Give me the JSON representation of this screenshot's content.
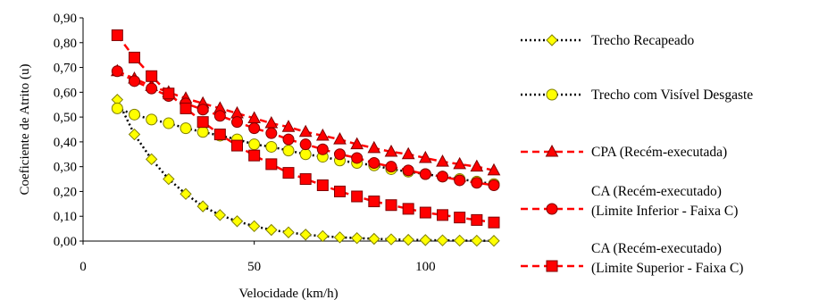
{
  "chart_data": {
    "type": "line",
    "title": "",
    "xlabel": "Velocidade (km/h)",
    "ylabel": "Coeficiente de Atrito (u)",
    "xlim": [
      0,
      120
    ],
    "ylim": [
      0,
      0.9
    ],
    "x_ticks": [
      "0",
      "50",
      "100"
    ],
    "y_ticks": [
      "0,00",
      "0,10",
      "0,20",
      "0,30",
      "0,40",
      "0,50",
      "0,60",
      "0,70",
      "0,80",
      "0,90"
    ],
    "grid": false,
    "legend_position": "right",
    "x": [
      10,
      15,
      20,
      25,
      30,
      35,
      40,
      45,
      50,
      55,
      60,
      65,
      70,
      75,
      80,
      85,
      90,
      95,
      100,
      105,
      110,
      115,
      120
    ],
    "series": [
      {
        "name": "Trecho Recapeado",
        "line_color": "#000000",
        "dash": "dot",
        "marker": "diamond",
        "marker_fill": "#ffff00",
        "marker_stroke": "#7f7f00",
        "values": [
          0.57,
          0.43,
          0.33,
          0.25,
          0.19,
          0.14,
          0.105,
          0.08,
          0.06,
          0.045,
          0.035,
          0.026,
          0.02,
          0.015,
          0.012,
          0.009,
          0.007,
          0.005,
          0.004,
          0.003,
          0.002,
          0.0015,
          0.001
        ]
      },
      {
        "name": "Trecho com Visível Desgaste",
        "line_color": "#000000",
        "dash": "dot",
        "marker": "circle",
        "marker_fill": "#ffff00",
        "marker_stroke": "#7f7f00",
        "values": [
          0.535,
          0.51,
          0.49,
          0.475,
          0.455,
          0.44,
          0.425,
          0.41,
          0.39,
          0.38,
          0.365,
          0.35,
          0.34,
          0.325,
          0.315,
          0.305,
          0.29,
          0.28,
          0.27,
          0.26,
          0.25,
          0.24,
          0.23
        ]
      },
      {
        "name": "CPA (Recém-executada)",
        "line_color": "#ff0000",
        "dash": "dash",
        "marker": "triangle",
        "marker_fill": "#ff0000",
        "marker_stroke": "#7f0000",
        "values": [
          0.685,
          0.655,
          0.625,
          0.6,
          0.575,
          0.555,
          0.535,
          0.515,
          0.495,
          0.475,
          0.46,
          0.44,
          0.425,
          0.41,
          0.39,
          0.375,
          0.36,
          0.35,
          0.335,
          0.32,
          0.31,
          0.3,
          0.285
        ]
      },
      {
        "name": "CA (Recém-executado) (Limite Inferior - Faixa C)",
        "line_color": "#ff0000",
        "dash": "dash",
        "marker": "circle",
        "marker_fill": "#ff0000",
        "marker_stroke": "#7f0000",
        "values": [
          0.685,
          0.645,
          0.615,
          0.585,
          0.555,
          0.53,
          0.505,
          0.48,
          0.455,
          0.435,
          0.41,
          0.39,
          0.37,
          0.35,
          0.335,
          0.315,
          0.3,
          0.285,
          0.27,
          0.26,
          0.245,
          0.235,
          0.225
        ]
      },
      {
        "name": "CA (Recém-executado) (Limite Superior - Faixa C)",
        "line_color": "#ff0000",
        "dash": "dash",
        "marker": "square",
        "marker_fill": "#ff0000",
        "marker_stroke": "#7f0000",
        "values": [
          0.83,
          0.74,
          0.665,
          0.595,
          0.535,
          0.48,
          0.43,
          0.385,
          0.345,
          0.31,
          0.275,
          0.25,
          0.225,
          0.2,
          0.18,
          0.16,
          0.145,
          0.13,
          0.115,
          0.105,
          0.095,
          0.085,
          0.075
        ]
      }
    ],
    "legend": [
      {
        "lines": [
          "Trecho Recapeado"
        ],
        "series_index": 0
      },
      {
        "lines": [
          "Trecho com Visível Desgaste"
        ],
        "series_index": 1
      },
      {
        "lines": [
          "CPA (Recém-executada)"
        ],
        "series_index": 2
      },
      {
        "lines": [
          "CA (Recém-executado)",
          "(Limite Inferior - Faixa C)"
        ],
        "series_index": 3
      },
      {
        "lines": [
          "CA (Recém-executado)",
          "(Limite Superior - Faixa C)"
        ],
        "series_index": 4
      }
    ]
  }
}
